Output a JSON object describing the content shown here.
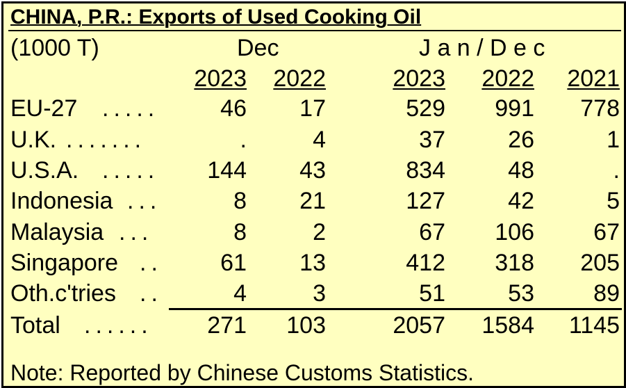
{
  "title": "CHINA, P.R.:  Exports of Used Cooking Oil",
  "unit": "(1000 T)",
  "group_headers": {
    "dec": "Dec",
    "jandec": "J a n / D e c"
  },
  "years": [
    "2023",
    "2022",
    "2023",
    "2022",
    "2021"
  ],
  "rows": [
    {
      "label": "EU-27",
      "dots": ".....",
      "values": [
        "46",
        "17",
        "529",
        "991",
        "778"
      ]
    },
    {
      "label": "U.K.",
      "dots": ".......",
      "values": [
        ".",
        "4",
        "37",
        "26",
        "1"
      ]
    },
    {
      "label": "U.S.A.",
      "dots": ".....",
      "values": [
        "144",
        "43",
        "834",
        "48",
        "."
      ]
    },
    {
      "label": "Indonesia",
      "dots": "...",
      "values": [
        "8",
        "21",
        "127",
        "42",
        "5"
      ]
    },
    {
      "label": "Malaysia",
      "dots": "...",
      "values": [
        "8",
        "2",
        "67",
        "106",
        "67"
      ]
    },
    {
      "label": "Singapore",
      "dots": "..",
      "values": [
        "61",
        "13",
        "412",
        "318",
        "205"
      ]
    },
    {
      "label": "Oth.c'tries",
      "dots": "..",
      "values": [
        "4",
        "3",
        "51",
        "53",
        "89"
      ]
    }
  ],
  "total": {
    "label": "Total",
    "dots": "......",
    "values": [
      "271",
      "103",
      "2057",
      "1584",
      "1145"
    ]
  },
  "note": "Note:  Reported by Chinese Customs Statistics."
}
